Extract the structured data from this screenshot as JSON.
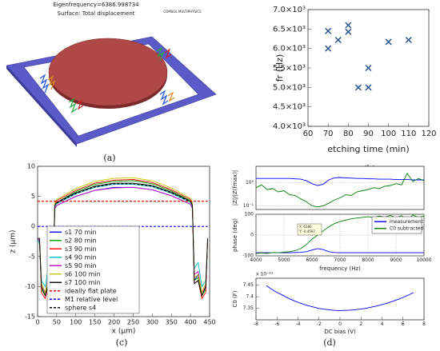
{
  "captions": [
    "(a)",
    "(b)",
    "(c)",
    "(d)"
  ],
  "render": {
    "eigenfrequency": "Eigenfrequency=6386.998734",
    "surface": "Surface: Total displacement",
    "logo": "COMSOL MULTIPHYSICS"
  },
  "chart_data": [
    {
      "type": "scatter",
      "xlabel": "etching time (min)",
      "ylabel": "fr (Hz)",
      "color": "#1f4e8c",
      "marker": "x",
      "x": [
        70,
        70,
        75,
        80,
        80,
        85,
        90,
        90,
        100,
        110
      ],
      "values": [
        6450,
        6000,
        6220,
        6600,
        6430,
        5000,
        5500,
        5000,
        6170,
        6220
      ],
      "xlim": [
        60,
        120
      ],
      "xticks": [
        60,
        70,
        80,
        90,
        100,
        110,
        120
      ],
      "ylim": [
        4000,
        7000
      ],
      "yticks": [
        {
          "value": 4000,
          "label": "4.0×10³"
        },
        {
          "value": 4500,
          "label": "4.5×10³"
        },
        {
          "value": 5000,
          "label": "5.0×10³"
        },
        {
          "value": 5500,
          "label": "5.5×10³"
        },
        {
          "value": 6000,
          "label": "6.0×10³"
        },
        {
          "value": 6500,
          "label": "6.5×10³"
        },
        {
          "value": 7000,
          "label": "7.0×10³"
        }
      ]
    },
    {
      "type": "line",
      "xlabel": "x (μm)",
      "ylabel": "z (μm)",
      "legend": "lower left",
      "x": [
        0,
        5,
        10,
        20,
        30,
        40,
        45,
        50,
        100,
        150,
        200,
        250,
        300,
        350,
        400,
        405,
        410,
        420,
        430,
        440,
        445
      ],
      "xlim": [
        0,
        450
      ],
      "xticks": [
        0,
        50,
        100,
        150,
        200,
        250,
        300,
        350,
        400,
        450
      ],
      "ylim": [
        -15,
        10
      ],
      "yticks": [
        -15,
        -10,
        -5,
        0,
        5,
        10
      ],
      "series": [
        {
          "name": "s1 70 min",
          "color": "#0000ff",
          "values": [
            -2,
            -2.5,
            -10,
            -11,
            -8,
            -9,
            3,
            3.5,
            5.0,
            6.0,
            6.5,
            6.5,
            6.1,
            5.1,
            3.7,
            3,
            -9,
            -8,
            -11,
            -10,
            -2
          ]
        },
        {
          "name": "s2 80 min",
          "color": "#00a000",
          "values": [
            -2,
            -2.5,
            -10.5,
            -11.5,
            -8.5,
            -9,
            3.5,
            4,
            5.8,
            7.0,
            7.5,
            7.6,
            7.1,
            5.9,
            4.3,
            3.5,
            -9,
            -8.5,
            -11.5,
            -10.5,
            -2
          ]
        },
        {
          "name": "s3 90 min",
          "color": "#ff0000",
          "values": [
            -2,
            -2,
            -11,
            -12,
            -9,
            -9.5,
            3.8,
            4.3,
            6.0,
            7.2,
            7.7,
            7.8,
            7.3,
            6.1,
            4.5,
            3.8,
            -9.5,
            -9,
            -12,
            -11,
            -2
          ]
        },
        {
          "name": "s4 90 min",
          "color": "#00c0c0",
          "values": [
            -2,
            -3,
            -9,
            -10,
            -6,
            -7,
            3.3,
            3.8,
            5.4,
            6.5,
            7.0,
            7.0,
            6.6,
            5.5,
            4.0,
            3.3,
            -7,
            -6,
            -10,
            -9,
            -2
          ]
        },
        {
          "name": "s5 90 min",
          "color": "#c000c0",
          "values": [
            -2,
            -2.5,
            -10,
            -11,
            -7.5,
            -8,
            3,
            3.5,
            5.0,
            6.0,
            6.4,
            6.5,
            6.1,
            5.1,
            3.7,
            3,
            -8,
            -7.5,
            -11,
            -10,
            -2
          ]
        },
        {
          "name": "s6 100 min",
          "color": "#c8c800",
          "values": [
            -2,
            -2,
            -9.5,
            -11,
            -8,
            -8.5,
            4,
            4.5,
            6.3,
            7.5,
            8.0,
            8.1,
            7.6,
            6.4,
            4.7,
            4,
            -8.5,
            -8,
            -11,
            -9.5,
            -2
          ]
        },
        {
          "name": "s7 100 min",
          "color": "#000000",
          "values": [
            -2,
            -2,
            -10,
            -11.5,
            -9,
            -9.5,
            3.5,
            4,
            5.6,
            6.7,
            7.2,
            7.2,
            6.8,
            5.7,
            4.2,
            3.5,
            -9.5,
            -9,
            -11.5,
            -10,
            -2
          ]
        },
        {
          "name": "ideally flat plate",
          "color": "#ff0000",
          "dashed": true,
          "values": [
            4.2,
            4.2,
            4.2,
            4.2,
            4.2,
            4.2,
            4.2,
            4.2,
            4.2,
            4.2,
            4.2,
            4.2,
            4.2,
            4.2,
            4.2,
            4.2,
            4.2,
            4.2,
            4.2,
            4.2,
            4.2
          ]
        },
        {
          "name": "M1 relative level",
          "color": "#0000ff",
          "dashed": true,
          "values": [
            0,
            0,
            0,
            0,
            0,
            0,
            0,
            0,
            0,
            0,
            0,
            0,
            0,
            0,
            0,
            0,
            0,
            0,
            0,
            0,
            0
          ]
        },
        {
          "name": "sphere s4",
          "color": "#000000",
          "dashed": true,
          "values": [
            null,
            null,
            null,
            null,
            null,
            null,
            null,
            3.9,
            5.5,
            6.6,
            7.1,
            7.1,
            6.7,
            5.6,
            4.1,
            null,
            null,
            null,
            null,
            null,
            null
          ]
        }
      ]
    },
    {
      "type": "line",
      "ylabel": "|Z|/|Z(fmax)|",
      "log_y": true,
      "grid": true,
      "x": [
        4000,
        4200,
        4400,
        4600,
        4800,
        5000,
        5200,
        5400,
        5600,
        5800,
        6000,
        6200,
        6400,
        6600,
        6800,
        7000,
        7200,
        7400,
        7600,
        7800,
        8000,
        8200,
        8400,
        8600,
        8800,
        9000,
        9200,
        9400,
        9600,
        9800,
        10000
      ],
      "xlim": [
        4000,
        10000
      ],
      "ylim": [
        0.07,
        5
      ],
      "yticks": [
        {
          "value": 0.1,
          "label": "10⁻¹"
        },
        {
          "value": 1,
          "label": "10⁰"
        }
      ],
      "series": [
        {
          "name": "measurement",
          "color": "#0000ff",
          "values": [
            1.5,
            1.5,
            1.5,
            1.5,
            1.5,
            1.5,
            1.5,
            1.45,
            1.4,
            1.2,
            0.9,
            0.75,
            0.85,
            1.3,
            1.6,
            1.65,
            1.6,
            1.55,
            1.5,
            1.5,
            1.45,
            1.45,
            1.4,
            1.4,
            1.4,
            1.35,
            1.35,
            1.35,
            1.3,
            1.3,
            1.3
          ]
        },
        {
          "name": "C0 subtracted",
          "color": "#008000",
          "values": [
            0.6,
            0.8,
            0.5,
            0.55,
            0.4,
            0.45,
            0.3,
            0.28,
            0.2,
            0.15,
            0.1,
            0.09,
            0.1,
            0.13,
            0.18,
            0.22,
            0.3,
            0.28,
            0.4,
            0.45,
            0.5,
            0.6,
            0.55,
            0.7,
            0.75,
            0.9,
            0.8,
            2.5,
            1.1,
            1.5,
            1.2
          ]
        }
      ]
    },
    {
      "type": "line",
      "ylabel": "phase (deg)",
      "xlabel": "frequency (Hz)",
      "legend": "upper right",
      "grid": true,
      "datatip": [
        "X: 6180",
        "Y: -0.4597"
      ],
      "x": [
        4000,
        4200,
        4400,
        4600,
        4800,
        5000,
        5200,
        5400,
        5600,
        5800,
        6000,
        6200,
        6400,
        6600,
        6800,
        7000,
        7200,
        7400,
        7600,
        7800,
        8000,
        8200,
        8400,
        8600,
        8800,
        9000,
        9200,
        9400,
        9600,
        9800,
        10000
      ],
      "xlim": [
        4000,
        10000
      ],
      "xticks": [
        4000,
        5000,
        6000,
        7000,
        8000,
        9000,
        10000
      ],
      "ylim": [
        -100,
        100
      ],
      "yticks": [
        -100,
        0,
        100
      ],
      "series": [
        {
          "name": "measurement",
          "color": "#0000ff",
          "values": [
            -85,
            -85,
            -85,
            -85,
            -85,
            -85,
            -85,
            -84,
            -83,
            -80,
            -72,
            -65,
            -70,
            -80,
            -84,
            -85,
            -85,
            -85,
            -85,
            -85,
            -85,
            -85,
            -85,
            -85,
            -85,
            -85,
            -85,
            -85,
            -85,
            -85,
            -85
          ]
        },
        {
          "name": "C0 subtracted",
          "color": "#008000",
          "values": [
            -88,
            -86,
            -88,
            -84,
            -85,
            -82,
            -80,
            -75,
            -65,
            -45,
            -20,
            0,
            20,
            40,
            55,
            65,
            72,
            78,
            82,
            85,
            88,
            84,
            92,
            86,
            95,
            83,
            94,
            70,
            97,
            85,
            92
          ]
        }
      ]
    },
    {
      "type": "line",
      "ylabel": "C0 (F)",
      "xlabel": "DC bias (V)",
      "y_exponent": "x 10⁻¹³",
      "x": [
        -7,
        -6.5,
        -6,
        -5.5,
        -5,
        -4.5,
        -4,
        -3.5,
        -3,
        -2.5,
        -2,
        -1.5,
        -1,
        -0.5,
        0,
        0.5,
        1,
        1.5,
        2,
        2.5,
        3,
        3.5,
        4,
        4.5,
        5,
        5.5,
        6,
        6.5,
        7
      ],
      "xlim": [
        -8,
        8
      ],
      "xticks": [
        -8,
        -6,
        -4,
        -2,
        0,
        2,
        4,
        6,
        8
      ],
      "ylim": [
        7.3,
        7.48
      ],
      "yticks": [
        7.35,
        7.4,
        7.45
      ],
      "series": [
        {
          "name": "C0",
          "color": "#0000ff",
          "values": [
            7.448,
            7.432,
            7.418,
            7.408,
            7.395,
            7.385,
            7.376,
            7.368,
            7.361,
            7.355,
            7.349,
            7.346,
            7.343,
            7.341,
            7.34,
            7.341,
            7.342,
            7.344,
            7.347,
            7.35,
            7.355,
            7.36,
            7.366,
            7.372,
            7.38,
            7.388,
            7.397,
            7.407,
            7.418
          ]
        }
      ]
    }
  ]
}
